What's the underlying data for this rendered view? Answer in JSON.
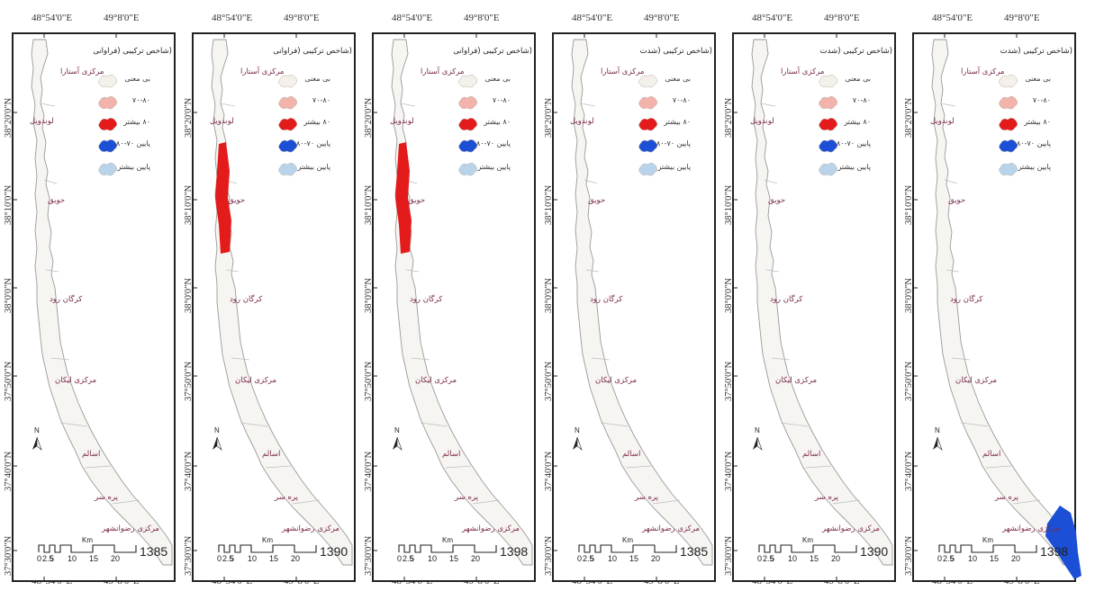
{
  "lon_ticks": [
    "48°54'0\"E",
    "49°8'0\"E"
  ],
  "lat_ticks": [
    "38°20'0\"N",
    "38°10'0\"N",
    "38°0'0\"N",
    "37°50'0\"N",
    "37°40'0\"N",
    "37°30'0\"N"
  ],
  "places": [
    "مرکزی آستارا",
    "لوندویل",
    "حویق",
    "کرگان رود",
    "مرکزی لیکان",
    "اسالم",
    "پره سر",
    "مرکزی رضوانشهر"
  ],
  "legend_items": [
    {
      "label": "بی معنی",
      "color": "#f4f0ea"
    },
    {
      "label": "۷۰-۸۰",
      "color": "#f1b3aa"
    },
    {
      "label": "۸۰ بیشتر",
      "color": "#e41b1b"
    },
    {
      "label": "پایین ۷۰-۸۰",
      "color": "#1a4fd6"
    },
    {
      "label": "پایین بیشتر",
      "color": "#b9d4ea"
    }
  ],
  "scale": {
    "unit": "Km",
    "ticks": [
      "0",
      "2.5",
      "5",
      "10",
      "15",
      "20"
    ]
  },
  "north_label": "N",
  "panels": [
    {
      "title": "(شاخص ترکیبی (فراوانی",
      "year": "1385",
      "highlight": null
    },
    {
      "title": "(شاخص ترکیبی (فراوانی",
      "year": "1390",
      "highlight": "red"
    },
    {
      "title": "(شاخص ترکیبی (فراوانی",
      "year": "1398",
      "highlight": "red"
    },
    {
      "title": "(شاخص ترکیبی (شدت",
      "year": "1385",
      "highlight": null
    },
    {
      "title": "(شاخص ترکیبی (شدت",
      "year": "1390",
      "highlight": null
    },
    {
      "title": "(شاخص ترکیبی (شدت",
      "year": "1398",
      "highlight": "blue"
    }
  ],
  "colors": {
    "red": "#e41b1b",
    "blue": "#1a4fd6",
    "outline": "#9a9a9a",
    "coast_fill": "#f7f5f2"
  }
}
